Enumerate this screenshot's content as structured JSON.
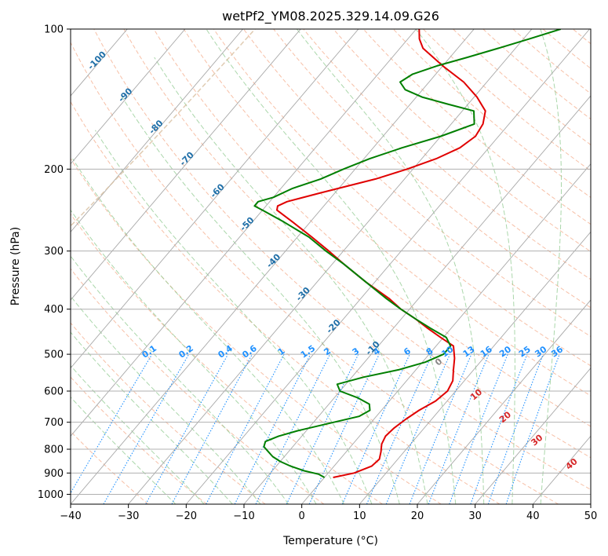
{
  "chart_data": {
    "type": "line",
    "diagram": "skew-t log-p",
    "title": "wetPf2_YM08.2025.329.14.09.G26",
    "xlabel": "Temperature (°C)",
    "ylabel": "Pressure (hPa)",
    "xlim": [
      -40,
      50
    ],
    "ylim": [
      1050,
      100
    ],
    "y_scale": "log",
    "x_ticks": [
      -40,
      -30,
      -20,
      -10,
      0,
      10,
      20,
      30,
      40,
      50
    ],
    "y_ticks": [
      1000,
      900,
      800,
      700,
      600,
      500,
      400,
      300,
      200,
      100
    ],
    "grid": true,
    "colors": {
      "temperature": "#e00000",
      "dewpoint": "#007f00",
      "isotherm": "#a8a8a8",
      "dry_adiabat": "#f4a582",
      "moist_adiabat": "#8fc98f",
      "mixing_ratio": "#1e90ff",
      "isotherm_label": "#1f6fa8",
      "dry_adiabat_label": "#d62728",
      "zero_label": "#888888",
      "lcl_curve": "#d8bfa0"
    },
    "isotherm_labels": [
      "-100",
      "-90",
      "-80",
      "-70",
      "-60",
      "-50",
      "-40",
      "-30",
      "-20",
      "-10"
    ],
    "isotherm_label_values": [
      -100,
      -90,
      -80,
      -70,
      -60,
      -50,
      -40,
      -30,
      -20,
      -10
    ],
    "isotherm_label_pressures": [
      118,
      140,
      164,
      192,
      225,
      265,
      318,
      375,
      440,
      490
    ],
    "dry_adiabat_labels": [
      "0",
      "10",
      "20",
      "30",
      "40"
    ],
    "dry_adiabat_label_temps": [
      24,
      30.5,
      35.5,
      41,
      47
    ],
    "dry_adiabat_label_pressures": [
      525,
      617,
      690,
      773,
      870
    ],
    "mixing_ratio_labels": [
      "0.1",
      "0.2",
      "0.4",
      "0.6",
      "1",
      "1.5",
      "2",
      "3",
      "4",
      "6",
      "8",
      "10",
      "13",
      "16",
      "20",
      "25",
      "30",
      "36"
    ],
    "mixing_ratio_values": [
      0.1,
      0.2,
      0.4,
      0.6,
      1,
      1.5,
      2,
      3,
      4,
      6,
      8,
      10,
      13,
      16,
      20,
      25,
      30,
      36
    ],
    "series": [
      {
        "variable": "temperature",
        "pressure": [
          920,
          900,
          870,
          840,
          810,
          780,
          750,
          720,
          690,
          660,
          630,
          600,
          570,
          540,
          510,
          480,
          460,
          440,
          420,
          400,
          380,
          350,
          320,
          300,
          280,
          260,
          245,
          240,
          235,
          225,
          210,
          200,
          190,
          180,
          170,
          160,
          150,
          140,
          130,
          120,
          110,
          105,
          100
        ],
        "temp": [
          1.5,
          4.5,
          6.5,
          6.8,
          6.0,
          5.0,
          4.5,
          4.8,
          5.5,
          6.5,
          8.0,
          8.6,
          8.0,
          6.5,
          5.0,
          3.0,
          -0.5,
          -4.0,
          -7.5,
          -11.5,
          -15.0,
          -21.5,
          -28.0,
          -32.5,
          -37.5,
          -43.0,
          -47.5,
          -48.0,
          -47.0,
          -42.5,
          -35.0,
          -31.0,
          -27.5,
          -25.0,
          -24.0,
          -24.5,
          -26.0,
          -29.5,
          -34.0,
          -40.0,
          -46.0,
          -48.0,
          -49.5
        ]
      },
      {
        "variable": "dewpoint",
        "pressure": [
          920,
          905,
          890,
          870,
          850,
          830,
          810,
          790,
          770,
          750,
          730,
          700,
          680,
          660,
          640,
          620,
          600,
          580,
          560,
          540,
          520,
          500,
          480,
          460,
          440,
          420,
          400,
          380,
          350,
          320,
          300,
          280,
          260,
          245,
          240,
          235,
          230,
          220,
          210,
          200,
          190,
          180,
          170,
          160,
          150,
          145,
          140,
          135,
          130,
          125,
          120,
          115,
          110,
          105,
          100
        ],
        "temp": [
          0.0,
          -1.5,
          -4.5,
          -7.5,
          -10.0,
          -12.0,
          -13.5,
          -15.0,
          -15.5,
          -14.0,
          -11.5,
          -6.5,
          -3.0,
          -2.0,
          -3.0,
          -6.0,
          -10.0,
          -11.5,
          -8.0,
          -3.0,
          0.5,
          2.5,
          2.5,
          0.5,
          -3.5,
          -7.5,
          -11.5,
          -15.5,
          -21.5,
          -28.0,
          -33.0,
          -38.0,
          -44.5,
          -50.0,
          -52.0,
          -52.0,
          -50.0,
          -48.0,
          -44.5,
          -42.0,
          -39.0,
          -35.0,
          -30.0,
          -26.0,
          -28.0,
          -33.5,
          -39.0,
          -43.0,
          -45.0,
          -44.0,
          -41.0,
          -37.0,
          -33.0,
          -29.0,
          -25.0
        ]
      }
    ]
  }
}
